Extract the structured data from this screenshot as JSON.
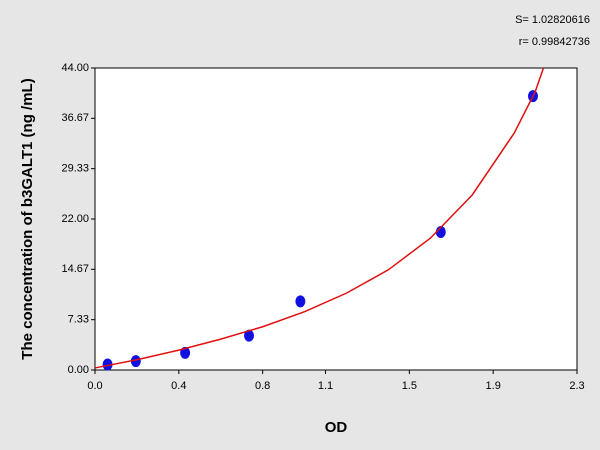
{
  "chart_data": {
    "type": "scatter",
    "xlabel": "OD",
    "ylabel": "The concentration of b3GALT1 (ng /mL)",
    "annotations": [
      "S= 1.02820616",
      "r= 0.99842736"
    ],
    "xlim": [
      0,
      2.3
    ],
    "xticks": [
      {
        "value": 0,
        "label": "0.0"
      },
      0.4,
      0.8,
      1.1,
      1.5,
      1.9,
      2.3
    ],
    "ylim": [
      0,
      44
    ],
    "yticks": [
      {
        "value": 0,
        "label": "0.00"
      },
      7.33,
      14.67,
      {
        "value": 22,
        "label": "22.00"
      },
      29.33,
      36.67,
      {
        "value": 44,
        "label": "44.00"
      }
    ],
    "series": [
      {
        "color": "#1010e0",
        "style": "points",
        "x": [
          0.06,
          0.195,
          0.43,
          0.735,
          0.98,
          1.65,
          2.09
        ],
        "values": [
          0.8,
          1.3,
          2.5,
          5.0,
          10.0,
          20.1,
          39.9
        ]
      },
      {
        "color": "#e01010",
        "style": "line",
        "x": [
          0,
          0.2,
          0.4,
          0.6,
          0.8,
          1.0,
          1.2,
          1.4,
          1.6,
          1.8,
          2.0,
          2.1,
          2.14
        ],
        "values": [
          0.3,
          1.5,
          2.9,
          4.5,
          6.3,
          8.5,
          11.2,
          14.6,
          19.2,
          25.5,
          34.5,
          40.5,
          44
        ]
      }
    ]
  }
}
